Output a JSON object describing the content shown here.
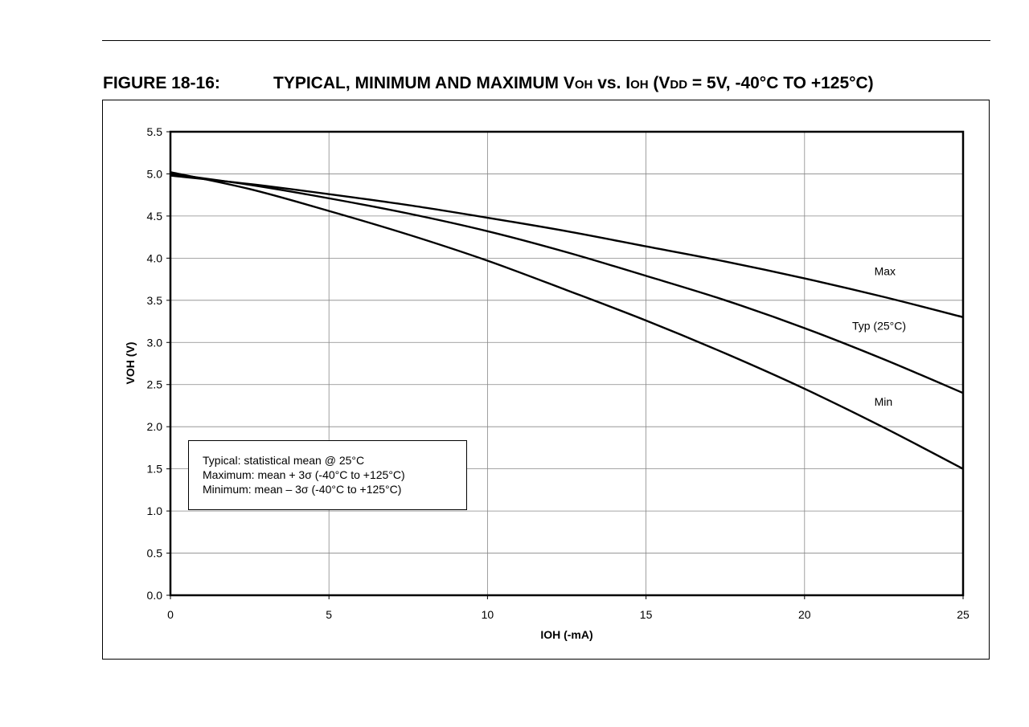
{
  "figure": {
    "number": "FIGURE 18-16:",
    "title_parts": [
      {
        "text": "TYPICAL, MINIMUM AND MAXIMUM V",
        "sub": false
      },
      {
        "text": "OH",
        "sub": true
      },
      {
        "text": " vs. I",
        "sub": false
      },
      {
        "text": "OH",
        "sub": true
      },
      {
        "text": " (V",
        "sub": false
      },
      {
        "text": "DD",
        "sub": true
      },
      {
        "text": " = 5V, -40°C TO +125°C)",
        "sub": false
      }
    ]
  },
  "legend_box": {
    "lines": [
      "Typical: statistical mean @ 25°C",
      "Maximum:  mean + 3σ (-40°C to +125°C)",
      "Minimum:   mean – 3σ (-40°C to +125°C)"
    ]
  },
  "chart_data": {
    "type": "line",
    "xlabel": "IOH (-mA)",
    "ylabel": "VOH (V)",
    "xlim": [
      0,
      25
    ],
    "ylim": [
      0,
      5.5
    ],
    "xticks": [
      0,
      5,
      10,
      15,
      20,
      25
    ],
    "yticks": [
      0.0,
      0.5,
      1.0,
      1.5,
      2.0,
      2.5,
      3.0,
      3.5,
      4.0,
      4.5,
      5.0,
      5.5
    ],
    "ytick_labels": [
      "0.0",
      "0.5",
      "1.0",
      "1.5",
      "2.0",
      "2.5",
      "3.0",
      "3.5",
      "4.0",
      "4.5",
      "5.0",
      "5.5"
    ],
    "grid": true,
    "series": [
      {
        "name": "Max",
        "label_at": [
          22.2,
          3.8
        ],
        "x": [
          0,
          2.5,
          5,
          7.5,
          10,
          12.5,
          15,
          17.5,
          20,
          22.5,
          25
        ],
        "y": [
          4.98,
          4.88,
          4.76,
          4.63,
          4.48,
          4.32,
          4.14,
          3.96,
          3.76,
          3.54,
          3.3
        ]
      },
      {
        "name": "Typ (25°C)",
        "label_at": [
          21.5,
          3.15
        ],
        "x": [
          0,
          2.5,
          5,
          7.5,
          10,
          12.5,
          15,
          17.5,
          20,
          22.5,
          25
        ],
        "y": [
          5.0,
          4.87,
          4.71,
          4.53,
          4.32,
          4.07,
          3.79,
          3.5,
          3.17,
          2.8,
          2.4
        ]
      },
      {
        "name": "Min",
        "label_at": [
          22.2,
          2.25
        ],
        "x": [
          0,
          2.5,
          5,
          7.5,
          10,
          12.5,
          15,
          17.5,
          20,
          22.5,
          25
        ],
        "y": [
          5.02,
          4.82,
          4.56,
          4.28,
          3.97,
          3.62,
          3.26,
          2.87,
          2.45,
          1.99,
          1.5
        ]
      }
    ]
  }
}
